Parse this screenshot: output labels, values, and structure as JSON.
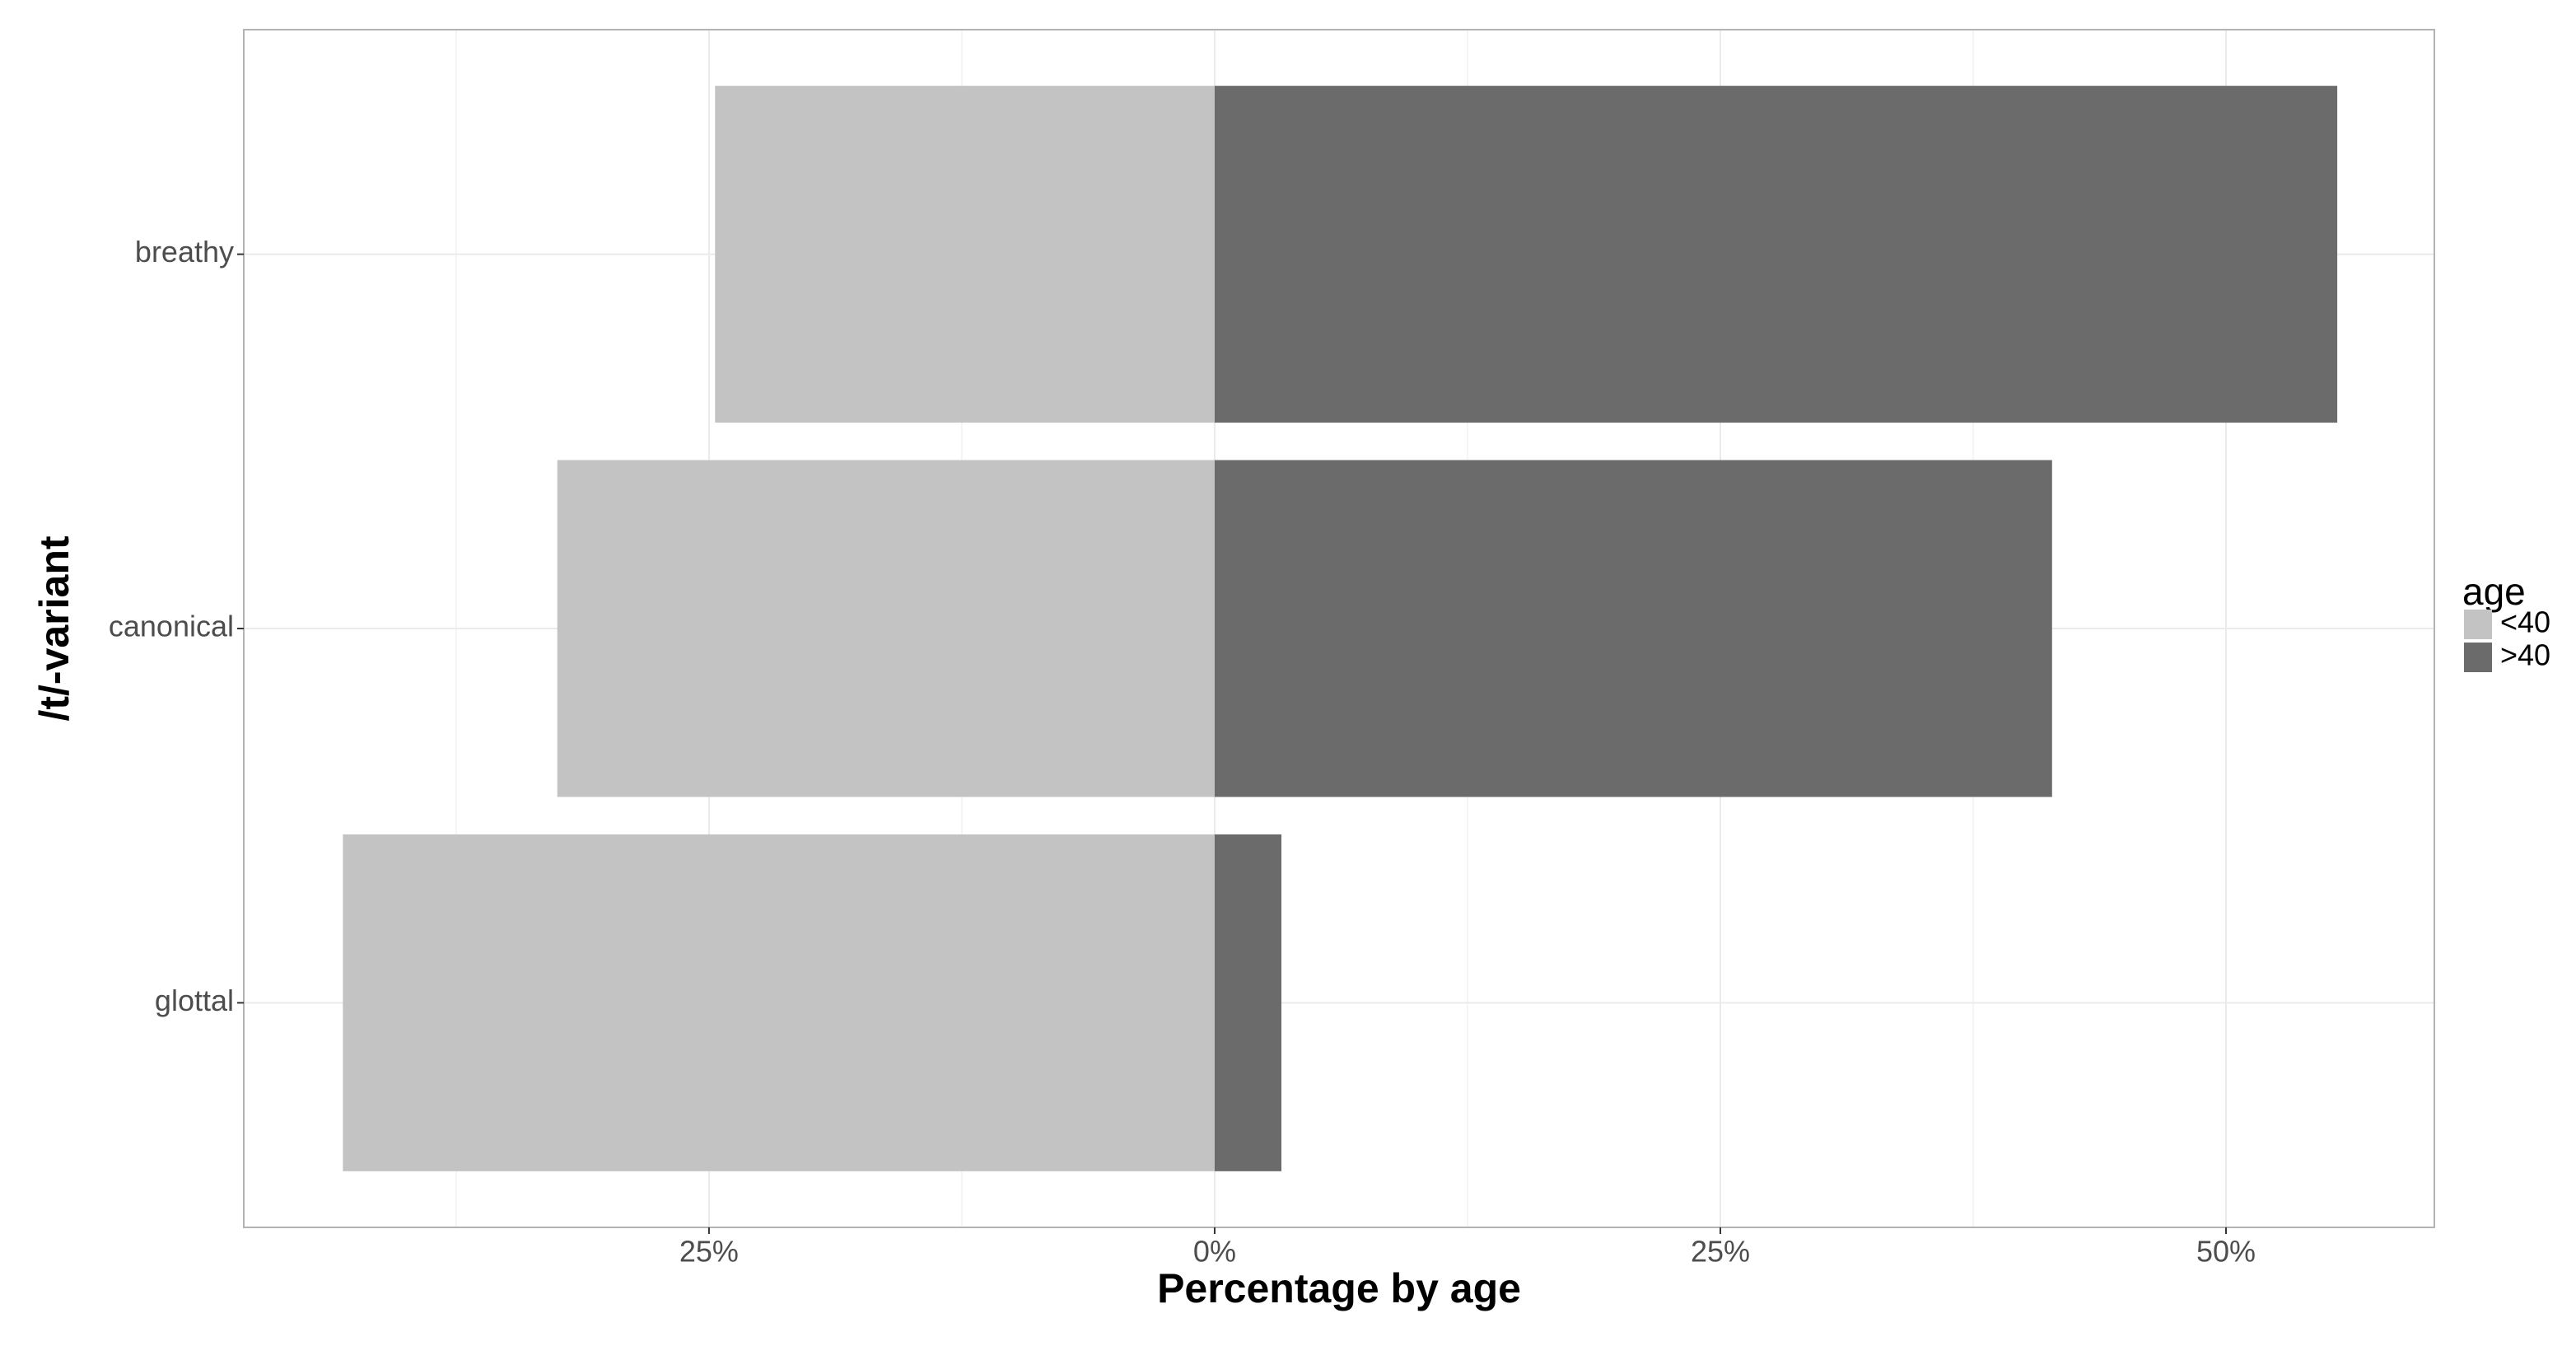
{
  "chart_data": {
    "type": "diverging-bar",
    "orientation": "horizontal",
    "x_label": "Percentage by age",
    "y_label": "/t/-variant",
    "categories": [
      "breathy",
      "canonical",
      "glottal"
    ],
    "series": [
      {
        "name": "<40",
        "color": "#c3c3c3",
        "values": [
          -24.7,
          -32.5,
          -43.1
        ]
      },
      {
        "name": ">40",
        "color": "#6b6b6b",
        "values": [
          55.5,
          41.4,
          3.3
        ]
      }
    ],
    "legend_title": "age",
    "legend_position": "right",
    "xlim": [
      -48,
      60.3
    ],
    "xticks": [
      {
        "value": -25,
        "label": "25%"
      },
      {
        "value": 0,
        "label": "0%"
      },
      {
        "value": 25,
        "label": "25%"
      },
      {
        "value": 50,
        "label": "50%"
      }
    ],
    "grid": true
  }
}
